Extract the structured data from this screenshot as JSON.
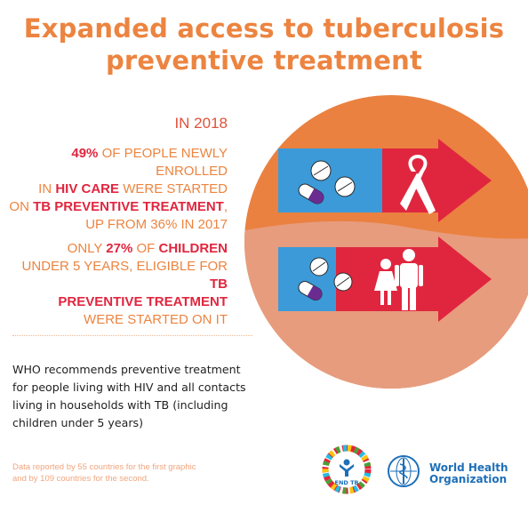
{
  "title": {
    "line1": "Expanded access to tuberculosis",
    "line2": "preventive treatment"
  },
  "year_label": "IN 2018",
  "stat1": {
    "pct": "49%",
    "t1": " OF PEOPLE NEWLY ENROLLED",
    "t2": "IN ",
    "hiv": "HIV CARE",
    "t3": " WERE STARTED",
    "t4": "ON ",
    "tbpt": "TB PREVENTIVE TREATMENT",
    "t5": ",",
    "t6": "UP FROM 36% IN 2017"
  },
  "stat2": {
    "t1": "ONLY ",
    "pct": "27%",
    "t2": " OF ",
    "children": "CHILDREN",
    "t3": "UNDER 5 YEARS, ELIGIBLE FOR ",
    "tb": "TB",
    "tbpt2": "PREVENTIVE TREATMENT",
    "t4": "WERE STARTED ON IT"
  },
  "recommendation": {
    "l1": "WHO recommends preventive treatment",
    "l2": "for people living with HIV and all contacts",
    "l3": "living in households with TB (including",
    "l4": "children under 5 years)"
  },
  "footnote": {
    "l1": "Data reported by 55 countries for the first graphic",
    "l2": "and by 109 countries for the second."
  },
  "logos": {
    "end_tb": "END TB",
    "who_l1": "World Health",
    "who_l2": "Organization"
  },
  "colors": {
    "orange": "#ec8440",
    "light_orange": "#e89a7c",
    "red": "#e0263f",
    "blue": "#3c9ad8"
  },
  "icons": [
    "pill-icon",
    "tablet-icon",
    "awareness-ribbon-icon",
    "girl-icon",
    "man-icon"
  ]
}
